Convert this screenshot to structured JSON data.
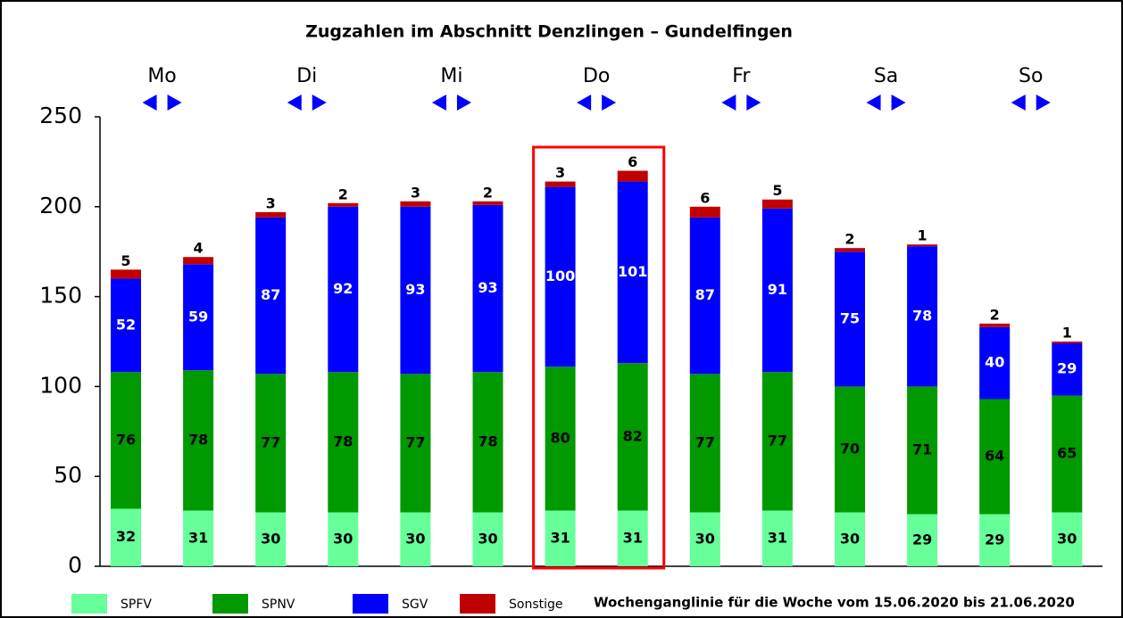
{
  "chart_data": {
    "type": "stacked_bar",
    "title": "Zugzahlen im Abschnitt Denzlingen – Gundelfingen",
    "note": "Wochenganglinie für die Woche vom 15.06.2020 bis 21.06.2020",
    "groups": [
      "Mo",
      "Di",
      "Mi",
      "Do",
      "Fr",
      "Sa",
      "So"
    ],
    "categories": [
      null,
      null,
      null,
      null,
      null,
      null,
      null,
      null,
      null,
      null,
      null,
      null,
      null,
      null
    ],
    "series": [
      {
        "name": "SPFV",
        "color": "#66ff99",
        "label_color": "#000000",
        "values": [
          32,
          31,
          30,
          30,
          30,
          30,
          31,
          31,
          30,
          31,
          30,
          29,
          29,
          30
        ]
      },
      {
        "name": "SPNV",
        "color": "#009900",
        "label_color": "#000000",
        "values": [
          76,
          78,
          77,
          78,
          77,
          78,
          80,
          82,
          77,
          77,
          70,
          71,
          64,
          65
        ]
      },
      {
        "name": "SGV",
        "color": "#0000ff",
        "label_color": "#ffffff",
        "values": [
          52,
          59,
          87,
          92,
          93,
          93,
          100,
          101,
          87,
          91,
          75,
          78,
          40,
          29
        ]
      },
      {
        "name": "Sonstige",
        "color": "#c00000",
        "label_color": "#000000",
        "values": [
          5,
          4,
          3,
          2,
          3,
          2,
          3,
          6,
          6,
          5,
          2,
          1,
          2,
          1
        ]
      }
    ],
    "ylim": [
      0,
      250
    ],
    "yticks": [
      0,
      50,
      100,
      150,
      200,
      250
    ],
    "grid": false
  }
}
